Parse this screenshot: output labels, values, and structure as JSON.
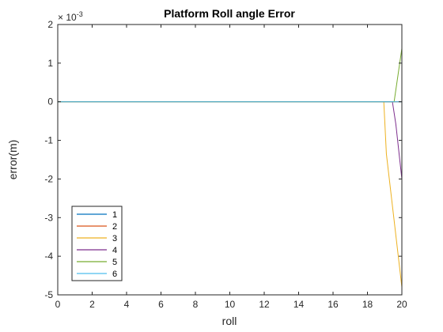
{
  "chart_data": {
    "type": "line",
    "title": "Platform Roll angle Error",
    "xlabel": "roll",
    "ylabel": "error(m)",
    "xlim": [
      0,
      20
    ],
    "ylim": [
      -0.005,
      0.002
    ],
    "xticks": [
      0,
      2,
      4,
      6,
      8,
      10,
      12,
      14,
      16,
      18,
      20
    ],
    "xtick_labels": [
      "0",
      "2",
      "4",
      "6",
      "8",
      "10",
      "12",
      "14",
      "16",
      "18",
      "20"
    ],
    "yticks": [
      -0.005,
      -0.004,
      -0.003,
      -0.002,
      -0.001,
      0,
      0.001,
      0.002
    ],
    "ytick_labels": [
      "-5",
      "-4",
      "-3",
      "-2",
      "-1",
      "0",
      "1",
      "2"
    ],
    "y_exponent": {
      "base": "× 10",
      "power": "-3"
    },
    "grid": false,
    "legend_position": "lower-left",
    "series": [
      {
        "name": "1",
        "color": "#0072BD",
        "x": [
          0,
          19,
          20
        ],
        "y": [
          0,
          0,
          0
        ]
      },
      {
        "name": "2",
        "color": "#D95319",
        "x": [
          0,
          19,
          20
        ],
        "y": [
          0,
          0,
          0
        ]
      },
      {
        "name": "3",
        "color": "#EDB120",
        "x": [
          0,
          18.95,
          19.1,
          20
        ],
        "y": [
          0,
          0,
          -0.00135,
          -0.0048
        ]
      },
      {
        "name": "4",
        "color": "#7E2F8E",
        "x": [
          0,
          19.45,
          19.65,
          20
        ],
        "y": [
          0,
          0,
          -0.00058,
          -0.002
        ]
      },
      {
        "name": "5",
        "color": "#77AC30",
        "x": [
          0,
          19.55,
          20
        ],
        "y": [
          0,
          0,
          0.00138
        ]
      },
      {
        "name": "6",
        "color": "#4DBEEE",
        "x": [
          0,
          20
        ],
        "y": [
          0,
          0
        ]
      }
    ]
  }
}
